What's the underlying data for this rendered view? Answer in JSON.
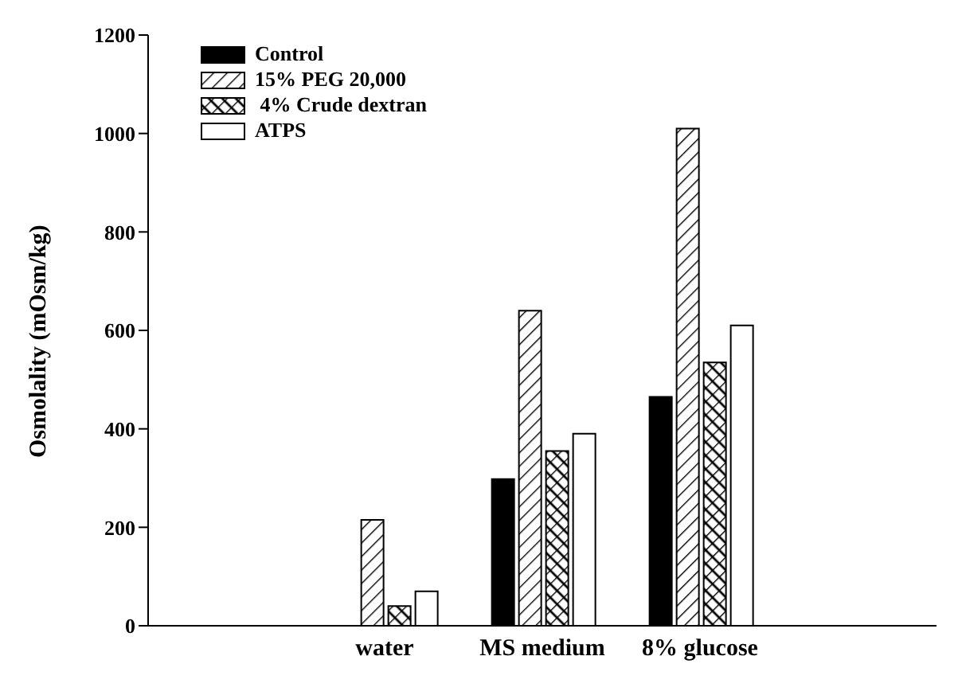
{
  "chart_data": {
    "type": "bar",
    "ylabel": "Osmolality (mOsm/kg)",
    "categories": [
      null,
      "water",
      "MS medium",
      "8% glucose",
      null
    ],
    "series": [
      {
        "name": "Control",
        "color": "#000000",
        "values": [
          null,
          0,
          298,
          465,
          null
        ]
      },
      {
        "name": "15% PEG 20,000",
        "color": "#000000",
        "values": [
          null,
          215,
          640,
          1010,
          null
        ]
      },
      {
        "name": " 4% Crude dextran",
        "color": "#000000",
        "values": [
          null,
          40,
          355,
          535,
          null
        ]
      },
      {
        "name": "ATPS",
        "color": "#ffffff",
        "values": [
          null,
          70,
          390,
          610,
          null
        ]
      }
    ],
    "ylim": [
      0,
      1200
    ],
    "yticks": [
      0,
      200,
      400,
      600,
      800,
      1000,
      1200
    ],
    "legend": "top left",
    "grid": false
  }
}
